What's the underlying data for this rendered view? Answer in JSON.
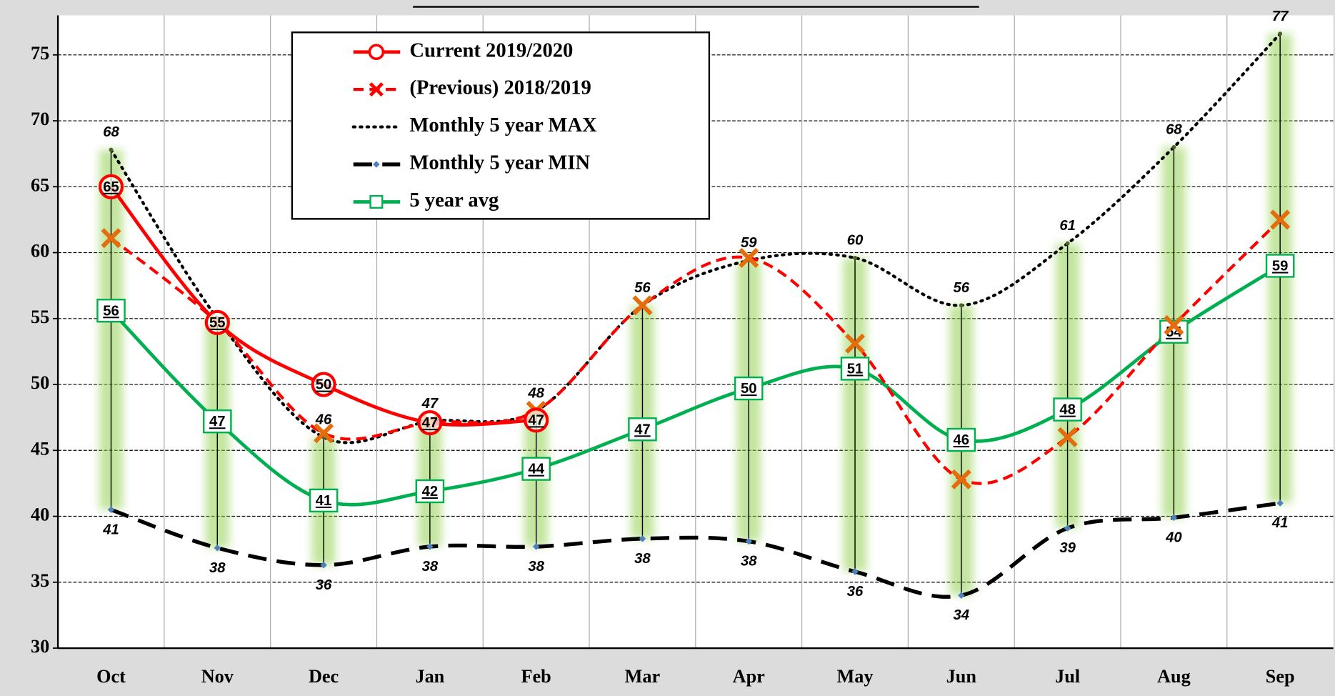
{
  "chart_data": {
    "type": "line",
    "categories": [
      "Oct",
      "Nov",
      "Dec",
      "Jan",
      "Feb",
      "Mar",
      "Apr",
      "May",
      "Jun",
      "Jul",
      "Aug",
      "Sep"
    ],
    "ylim": [
      30,
      78
    ],
    "yticks": [
      30,
      35,
      40,
      45,
      50,
      55,
      60,
      65,
      70,
      75
    ],
    "grid": true,
    "legend": "top-left",
    "series": [
      {
        "name": "Current 2019/2020",
        "color": "#ff0000",
        "values": [
          65,
          54.7,
          50,
          47.1,
          47.3,
          null,
          null,
          null,
          null,
          null,
          null,
          null
        ],
        "value_labels": [
          "65",
          "55",
          "50",
          "47",
          "47",
          null,
          null,
          null,
          null,
          null,
          null,
          null
        ]
      },
      {
        "name": "(Previous) 2018/2019",
        "color": "#ff0000",
        "marker_color": "#e46c0a",
        "values": [
          61.1,
          54.7,
          46.3,
          47.1,
          48,
          56,
          59.6,
          53.1,
          42.8,
          46,
          54.5,
          62.5
        ]
      },
      {
        "name": "Monthly 5 year MAX",
        "color": "#000000",
        "values": [
          67.8,
          55,
          46,
          47.2,
          48,
          56,
          59.4,
          59.6,
          56,
          60.7,
          68,
          76.6
        ],
        "value_labels": [
          "68",
          null,
          "46",
          "47",
          "48",
          "56",
          "59",
          "60",
          "56",
          "61",
          "68",
          "77"
        ]
      },
      {
        "name": "Monthly 5 year MIN",
        "color": "#000000",
        "marker_color": "#4f81bd",
        "values": [
          40.5,
          37.6,
          36.3,
          37.7,
          37.7,
          38.3,
          38.1,
          35.8,
          34,
          39.1,
          39.9,
          41
        ],
        "value_labels": [
          "41",
          "38",
          "36",
          "38",
          "38",
          "38",
          "38",
          "36",
          "34",
          "39",
          "40",
          "41"
        ]
      },
      {
        "name": "5 year avg",
        "color": "#00b050",
        "values": [
          55.6,
          47.2,
          41.2,
          41.9,
          43.6,
          46.6,
          49.7,
          51.2,
          45.8,
          48.1,
          54,
          59
        ],
        "value_labels": [
          "56",
          "47",
          "41",
          "42",
          "44",
          "47",
          "50",
          "51",
          "46",
          "48",
          "54",
          "59"
        ]
      }
    ]
  }
}
